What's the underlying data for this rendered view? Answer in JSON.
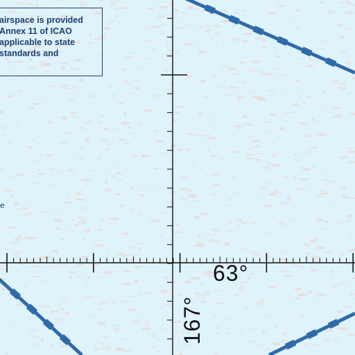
{
  "notice": {
    "lines": [
      "airspace is provided",
      "Annex 11 of ICAO",
      "applicable to state",
      "standards and"
    ]
  },
  "stray_text": "e",
  "graticule": {
    "latitude_label": "63°",
    "longitude_label": "167°"
  },
  "colors": {
    "sea": "#dff3fb",
    "texture": "#e4dcd8",
    "boundary": "#2f6aa8",
    "grid": "#111111",
    "note_text": "#1e3f73"
  }
}
